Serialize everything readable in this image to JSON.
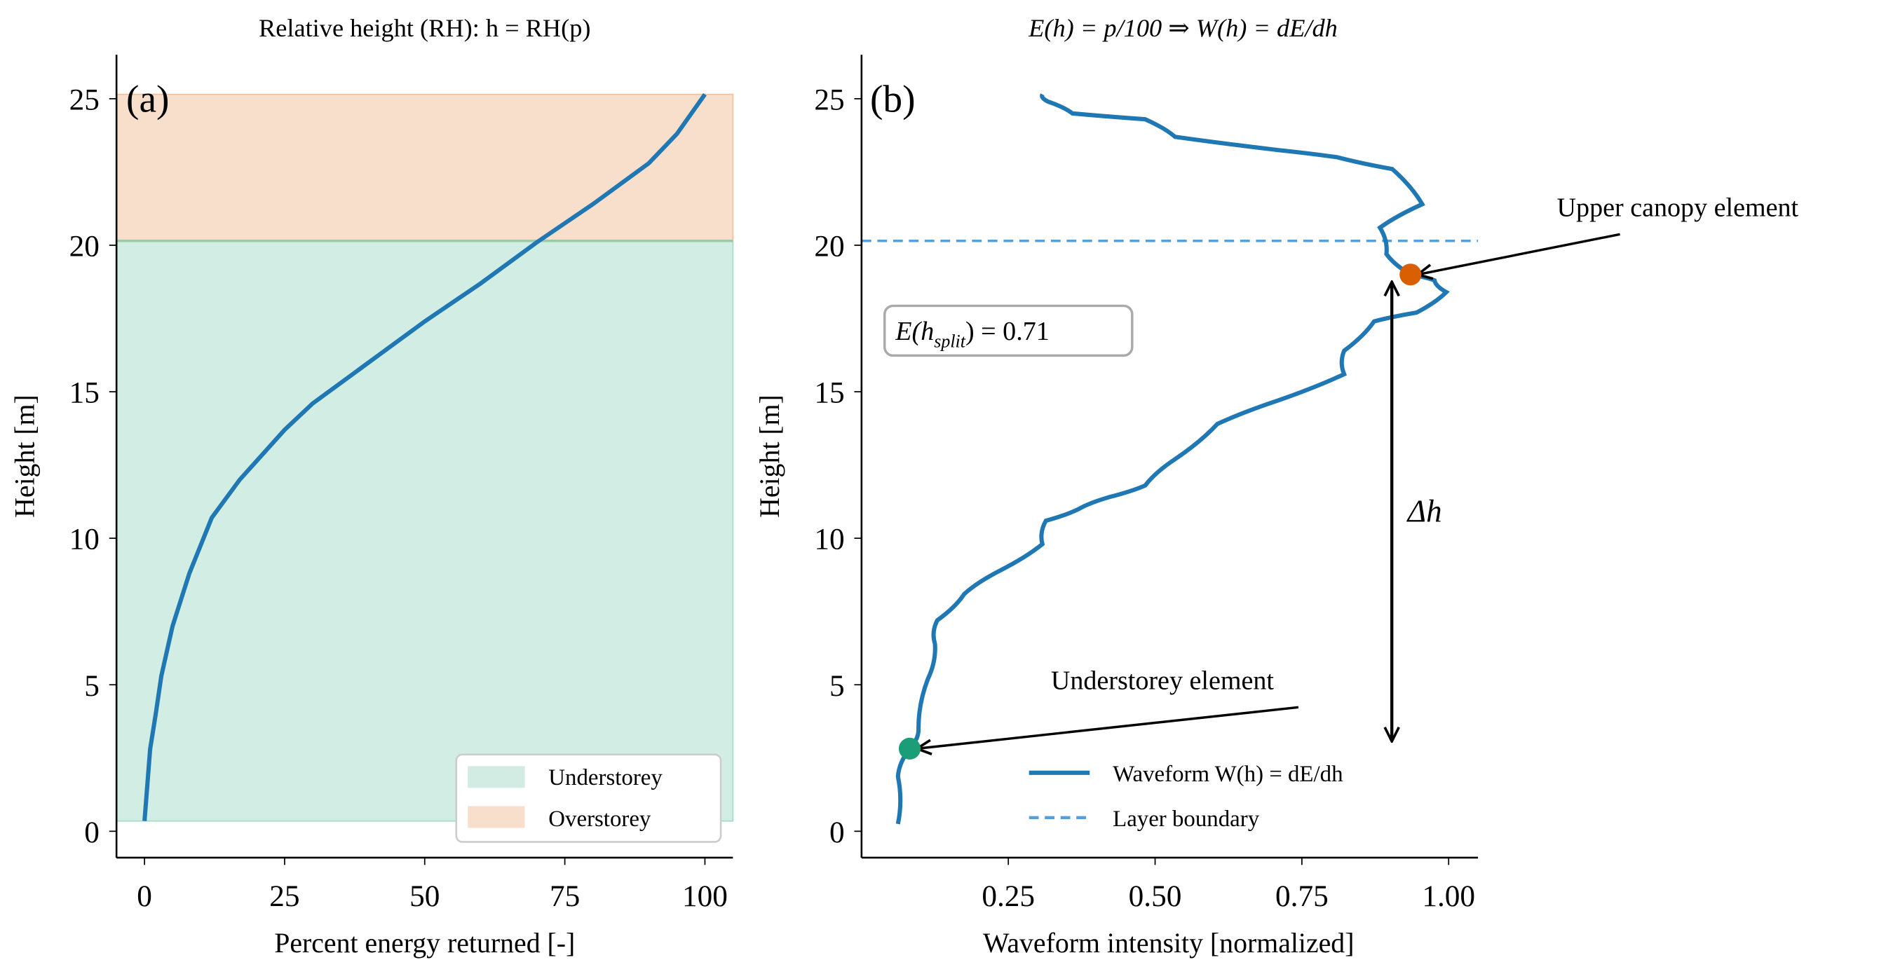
{
  "chart_data": [
    {
      "type": "line",
      "panel_label": "(a)",
      "title": "Relative height (RH): h = RH(p)",
      "xlabel": "Percent energy returned [-]",
      "ylabel": "Height [m]",
      "xlim": [
        -5,
        105
      ],
      "ylim": [
        -0.9,
        26.5
      ],
      "xticks": [
        "0",
        "25",
        "50",
        "75",
        "100"
      ],
      "yticks": [
        "0",
        "5",
        "10",
        "15",
        "20",
        "25"
      ],
      "grid": false,
      "legend_position": "bottom-right",
      "bands": [
        {
          "name": "Understorey",
          "from": 0.35,
          "to": 20.15,
          "color": "#a6dbc8"
        },
        {
          "name": "Overstorey",
          "from": 20.15,
          "to": 25.15,
          "color": "#f0c09a"
        }
      ],
      "series": [
        {
          "color": "#1f77b4",
          "x": [
            0,
            1,
            2,
            3,
            5,
            8,
            12,
            17,
            25,
            30,
            40,
            50,
            60,
            70,
            80,
            90,
            95,
            100
          ],
          "y": [
            0.35,
            2.8,
            4,
            5.3,
            7,
            8.8,
            10.7,
            12,
            13.7,
            14.6,
            16,
            17.4,
            18.7,
            20.1,
            21.4,
            22.8,
            23.8,
            25.15
          ]
        }
      ]
    },
    {
      "type": "line",
      "panel_label": "(b)",
      "title": "E(h) = p/100 ⇒ W(h) = dE/dh",
      "xlabel": "Waveform intensity [normalized]",
      "ylabel": "Height [m]",
      "xlim": [
        0,
        1.05
      ],
      "ylim": [
        -0.9,
        26.5
      ],
      "xticks": [
        "0.25",
        "0.50",
        "0.75",
        "1.00"
      ],
      "yticks": [
        "0",
        "5",
        "10",
        "15",
        "20",
        "25"
      ],
      "grid": false,
      "legend_position": "bottom-right",
      "series": [
        {
          "name": "Waveform W(h) = dE/dh",
          "color": "#1f77b4",
          "x": [
            0.062,
            0.062,
            0.082,
            0.097,
            0.113,
            0.125,
            0.129,
            0.175,
            0.236,
            0.308,
            0.314,
            0.37,
            0.421,
            0.483,
            0.534,
            0.606,
            0.709,
            0.822,
            0.822,
            0.873,
            0.945,
            0.996,
            0.976,
            0.935,
            0.894,
            0.883,
            0.955,
            0.904,
            0.811,
            0.709,
            0.534,
            0.483,
            0.359,
            0.318,
            0.308
          ],
          "y": [
            0.25,
            1.87,
            2.82,
            3.5,
            5.2,
            6.4,
            7.2,
            8.1,
            8.9,
            9.8,
            10.6,
            11,
            11.4,
            11.8,
            12.7,
            13.9,
            14.7,
            15.6,
            16.4,
            17.4,
            17.7,
            18.4,
            18.8,
            19.0,
            19.7,
            20.6,
            21.4,
            22.6,
            23.0,
            23.25,
            23.7,
            24.3,
            24.5,
            24.9,
            25.15
          ]
        },
        {
          "name": "Layer boundary",
          "color": "#5a9fd4",
          "style": "dashed",
          "y_const": 20.15
        }
      ],
      "points": [
        {
          "name": "Understorey element",
          "x": 0.082,
          "y": 2.82,
          "color": "#1b9e77"
        },
        {
          "name": "Upper canopy element",
          "x": 0.935,
          "y": 19.0,
          "color": "#d95f02"
        }
      ],
      "annotations": {
        "box": "E(h_split) = 0.71",
        "box_main": "E(h",
        "box_sub": "split",
        "box_rest": ") = 0.71",
        "delta": "Δh",
        "upper": "Upper canopy element",
        "under": "Understorey element"
      }
    }
  ]
}
